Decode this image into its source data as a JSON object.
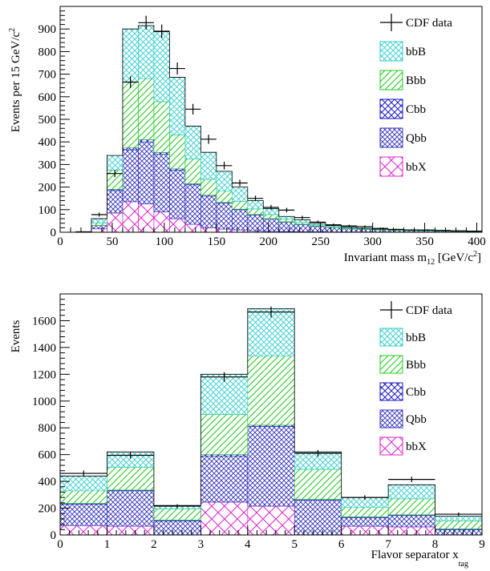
{
  "colors": {
    "bbB": "#33cccc",
    "Bbb": "#22cc22",
    "Cbb": "#1a1ac8",
    "Qbb": "#3333bb",
    "bbX": "#dd22cc",
    "data": "#000000"
  },
  "chart_data": [
    {
      "type": "bar",
      "stacked": true,
      "xlabel": "Invariant mass m",
      "xlabel_sub": "12",
      "xlabel_unit": " [GeV/c",
      "xlabel_sup": "2",
      "xlabel_end": "]",
      "ylabel": "Events per 15 GeV/c",
      "ylabel_sup": "2",
      "xlim": [
        0,
        405
      ],
      "ylim": [
        0,
        1000
      ],
      "xticks": [
        0,
        50,
        100,
        150,
        200,
        250,
        300,
        350,
        400
      ],
      "yticks": [
        0,
        100,
        200,
        300,
        400,
        500,
        600,
        700,
        800,
        900
      ],
      "bin_edges": [
        0,
        15,
        30,
        45,
        60,
        75,
        90,
        105,
        120,
        135,
        150,
        165,
        180,
        195,
        210,
        225,
        240,
        255,
        270,
        285,
        300,
        315,
        330,
        345,
        360,
        375,
        390,
        405
      ],
      "stack_order": [
        "bbX",
        "Qbb",
        "Cbb",
        "Bbb",
        "bbB"
      ],
      "series": [
        {
          "name": "bbX",
          "values": [
            0,
            0,
            15,
            85,
            135,
            125,
            90,
            60,
            35,
            20,
            14,
            10,
            6,
            4,
            3,
            2,
            2,
            1,
            1,
            1,
            0,
            0,
            0,
            0,
            0,
            0,
            0
          ]
        },
        {
          "name": "Qbb",
          "values": [
            0,
            2,
            15,
            100,
            230,
            275,
            255,
            215,
            175,
            140,
            115,
            90,
            70,
            55,
            42,
            32,
            25,
            20,
            15,
            12,
            10,
            8,
            7,
            6,
            5,
            4,
            3
          ]
        },
        {
          "name": "Cbb",
          "values": [
            0,
            0,
            0,
            5,
            10,
            10,
            8,
            6,
            5,
            4,
            3,
            2,
            2,
            1,
            1,
            1,
            1,
            0,
            0,
            0,
            0,
            0,
            0,
            0,
            0,
            0,
            0
          ]
        },
        {
          "name": "Bbb",
          "values": [
            0,
            0,
            10,
            85,
            290,
            270,
            225,
            150,
            110,
            70,
            50,
            35,
            25,
            18,
            12,
            8,
            6,
            4,
            3,
            3,
            2,
            2,
            1,
            1,
            1,
            1,
            1
          ]
        },
        {
          "name": "bbB",
          "values": [
            0,
            0,
            20,
            65,
            235,
            235,
            310,
            255,
            145,
            120,
            88,
            63,
            37,
            27,
            12,
            12,
            6,
            5,
            4,
            2,
            2,
            3,
            2,
            2,
            1,
            1,
            1
          ]
        }
      ],
      "data_points": {
        "name": "CDF data",
        "values": [
          0,
          2,
          78,
          260,
          665,
          928,
          890,
          725,
          545,
          412,
          295,
          218,
          150,
          110,
          98,
          65,
          45,
          33,
          28,
          25,
          17,
          12,
          10,
          10,
          8,
          6,
          5
        ]
      },
      "legend": [
        "CDF data",
        "bbB",
        "Bbb",
        "Cbb",
        "Qbb",
        "bbX"
      ],
      "legend_position": "top-right"
    },
    {
      "type": "bar",
      "stacked": true,
      "xlabel": "Flavor separator x",
      "xlabel_sub": "tag",
      "ylabel": "Events",
      "xlim": [
        0,
        9
      ],
      "ylim": [
        0,
        1800
      ],
      "xticks": [
        0,
        1,
        2,
        3,
        4,
        5,
        6,
        7,
        8,
        9
      ],
      "yticks": [
        0,
        200,
        400,
        600,
        800,
        1000,
        1200,
        1400,
        1600
      ],
      "bin_edges": [
        0,
        1,
        2,
        3,
        4,
        5,
        6,
        7,
        8,
        9
      ],
      "stack_order": [
        "bbX",
        "Qbb",
        "Cbb",
        "Bbb",
        "bbB"
      ],
      "series": [
        {
          "name": "bbX",
          "values": [
            70,
            65,
            0,
            245,
            215,
            0,
            65,
            60,
            0
          ]
        },
        {
          "name": "Qbb",
          "values": [
            160,
            265,
            105,
            345,
            595,
            260,
            65,
            85,
            40
          ]
        },
        {
          "name": "Cbb",
          "values": [
            5,
            5,
            5,
            10,
            10,
            5,
            5,
            5,
            5
          ]
        },
        {
          "name": "Bbb",
          "values": [
            95,
            170,
            85,
            300,
            515,
            225,
            70,
            120,
            60
          ]
        },
        {
          "name": "bbB",
          "values": [
            110,
            115,
            25,
            300,
            355,
            130,
            75,
            105,
            35
          ]
        }
      ],
      "data_points": {
        "name": "CDF data",
        "values": [
          460,
          595,
          215,
          1180,
          1665,
          610,
          280,
          415,
          155
        ]
      },
      "legend": [
        "CDF data",
        "bbB",
        "Bbb",
        "Cbb",
        "Qbb",
        "bbX"
      ],
      "legend_position": "top-right"
    }
  ]
}
